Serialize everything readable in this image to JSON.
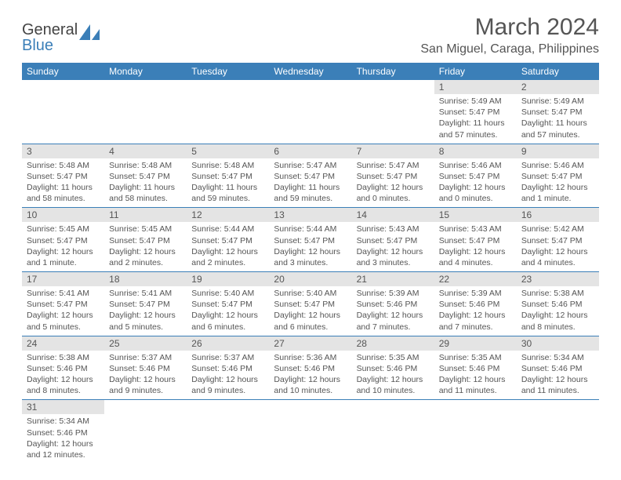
{
  "brand": {
    "part1": "General",
    "part2": "Blue"
  },
  "title": "March 2024",
  "location": "San Miguel, Caraga, Philippines",
  "colors": {
    "header_bg": "#3b7fb8",
    "header_text": "#ffffff",
    "daynum_bg": "#e4e4e4",
    "text": "#555555",
    "rule": "#3b7fb8",
    "page_bg": "#ffffff"
  },
  "weekdays": [
    "Sunday",
    "Monday",
    "Tuesday",
    "Wednesday",
    "Thursday",
    "Friday",
    "Saturday"
  ],
  "weeks": [
    [
      {
        "n": "",
        "sr": "",
        "ss": "",
        "dl": ""
      },
      {
        "n": "",
        "sr": "",
        "ss": "",
        "dl": ""
      },
      {
        "n": "",
        "sr": "",
        "ss": "",
        "dl": ""
      },
      {
        "n": "",
        "sr": "",
        "ss": "",
        "dl": ""
      },
      {
        "n": "",
        "sr": "",
        "ss": "",
        "dl": ""
      },
      {
        "n": "1",
        "sr": "Sunrise: 5:49 AM",
        "ss": "Sunset: 5:47 PM",
        "dl": "Daylight: 11 hours and 57 minutes."
      },
      {
        "n": "2",
        "sr": "Sunrise: 5:49 AM",
        "ss": "Sunset: 5:47 PM",
        "dl": "Daylight: 11 hours and 57 minutes."
      }
    ],
    [
      {
        "n": "3",
        "sr": "Sunrise: 5:48 AM",
        "ss": "Sunset: 5:47 PM",
        "dl": "Daylight: 11 hours and 58 minutes."
      },
      {
        "n": "4",
        "sr": "Sunrise: 5:48 AM",
        "ss": "Sunset: 5:47 PM",
        "dl": "Daylight: 11 hours and 58 minutes."
      },
      {
        "n": "5",
        "sr": "Sunrise: 5:48 AM",
        "ss": "Sunset: 5:47 PM",
        "dl": "Daylight: 11 hours and 59 minutes."
      },
      {
        "n": "6",
        "sr": "Sunrise: 5:47 AM",
        "ss": "Sunset: 5:47 PM",
        "dl": "Daylight: 11 hours and 59 minutes."
      },
      {
        "n": "7",
        "sr": "Sunrise: 5:47 AM",
        "ss": "Sunset: 5:47 PM",
        "dl": "Daylight: 12 hours and 0 minutes."
      },
      {
        "n": "8",
        "sr": "Sunrise: 5:46 AM",
        "ss": "Sunset: 5:47 PM",
        "dl": "Daylight: 12 hours and 0 minutes."
      },
      {
        "n": "9",
        "sr": "Sunrise: 5:46 AM",
        "ss": "Sunset: 5:47 PM",
        "dl": "Daylight: 12 hours and 1 minute."
      }
    ],
    [
      {
        "n": "10",
        "sr": "Sunrise: 5:45 AM",
        "ss": "Sunset: 5:47 PM",
        "dl": "Daylight: 12 hours and 1 minute."
      },
      {
        "n": "11",
        "sr": "Sunrise: 5:45 AM",
        "ss": "Sunset: 5:47 PM",
        "dl": "Daylight: 12 hours and 2 minutes."
      },
      {
        "n": "12",
        "sr": "Sunrise: 5:44 AM",
        "ss": "Sunset: 5:47 PM",
        "dl": "Daylight: 12 hours and 2 minutes."
      },
      {
        "n": "13",
        "sr": "Sunrise: 5:44 AM",
        "ss": "Sunset: 5:47 PM",
        "dl": "Daylight: 12 hours and 3 minutes."
      },
      {
        "n": "14",
        "sr": "Sunrise: 5:43 AM",
        "ss": "Sunset: 5:47 PM",
        "dl": "Daylight: 12 hours and 3 minutes."
      },
      {
        "n": "15",
        "sr": "Sunrise: 5:43 AM",
        "ss": "Sunset: 5:47 PM",
        "dl": "Daylight: 12 hours and 4 minutes."
      },
      {
        "n": "16",
        "sr": "Sunrise: 5:42 AM",
        "ss": "Sunset: 5:47 PM",
        "dl": "Daylight: 12 hours and 4 minutes."
      }
    ],
    [
      {
        "n": "17",
        "sr": "Sunrise: 5:41 AM",
        "ss": "Sunset: 5:47 PM",
        "dl": "Daylight: 12 hours and 5 minutes."
      },
      {
        "n": "18",
        "sr": "Sunrise: 5:41 AM",
        "ss": "Sunset: 5:47 PM",
        "dl": "Daylight: 12 hours and 5 minutes."
      },
      {
        "n": "19",
        "sr": "Sunrise: 5:40 AM",
        "ss": "Sunset: 5:47 PM",
        "dl": "Daylight: 12 hours and 6 minutes."
      },
      {
        "n": "20",
        "sr": "Sunrise: 5:40 AM",
        "ss": "Sunset: 5:47 PM",
        "dl": "Daylight: 12 hours and 6 minutes."
      },
      {
        "n": "21",
        "sr": "Sunrise: 5:39 AM",
        "ss": "Sunset: 5:46 PM",
        "dl": "Daylight: 12 hours and 7 minutes."
      },
      {
        "n": "22",
        "sr": "Sunrise: 5:39 AM",
        "ss": "Sunset: 5:46 PM",
        "dl": "Daylight: 12 hours and 7 minutes."
      },
      {
        "n": "23",
        "sr": "Sunrise: 5:38 AM",
        "ss": "Sunset: 5:46 PM",
        "dl": "Daylight: 12 hours and 8 minutes."
      }
    ],
    [
      {
        "n": "24",
        "sr": "Sunrise: 5:38 AM",
        "ss": "Sunset: 5:46 PM",
        "dl": "Daylight: 12 hours and 8 minutes."
      },
      {
        "n": "25",
        "sr": "Sunrise: 5:37 AM",
        "ss": "Sunset: 5:46 PM",
        "dl": "Daylight: 12 hours and 9 minutes."
      },
      {
        "n": "26",
        "sr": "Sunrise: 5:37 AM",
        "ss": "Sunset: 5:46 PM",
        "dl": "Daylight: 12 hours and 9 minutes."
      },
      {
        "n": "27",
        "sr": "Sunrise: 5:36 AM",
        "ss": "Sunset: 5:46 PM",
        "dl": "Daylight: 12 hours and 10 minutes."
      },
      {
        "n": "28",
        "sr": "Sunrise: 5:35 AM",
        "ss": "Sunset: 5:46 PM",
        "dl": "Daylight: 12 hours and 10 minutes."
      },
      {
        "n": "29",
        "sr": "Sunrise: 5:35 AM",
        "ss": "Sunset: 5:46 PM",
        "dl": "Daylight: 12 hours and 11 minutes."
      },
      {
        "n": "30",
        "sr": "Sunrise: 5:34 AM",
        "ss": "Sunset: 5:46 PM",
        "dl": "Daylight: 12 hours and 11 minutes."
      }
    ],
    [
      {
        "n": "31",
        "sr": "Sunrise: 5:34 AM",
        "ss": "Sunset: 5:46 PM",
        "dl": "Daylight: 12 hours and 12 minutes."
      },
      {
        "n": "",
        "sr": "",
        "ss": "",
        "dl": ""
      },
      {
        "n": "",
        "sr": "",
        "ss": "",
        "dl": ""
      },
      {
        "n": "",
        "sr": "",
        "ss": "",
        "dl": ""
      },
      {
        "n": "",
        "sr": "",
        "ss": "",
        "dl": ""
      },
      {
        "n": "",
        "sr": "",
        "ss": "",
        "dl": ""
      },
      {
        "n": "",
        "sr": "",
        "ss": "",
        "dl": ""
      }
    ]
  ]
}
